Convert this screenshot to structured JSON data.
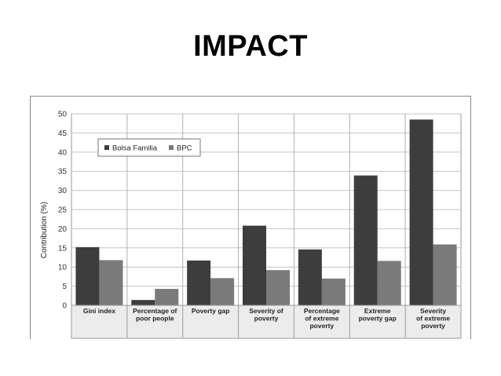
{
  "slide": {
    "title": "IMPACT"
  },
  "chart_data": {
    "type": "bar",
    "title": "",
    "xlabel": "",
    "ylabel": "Contribution (%)",
    "ylim": [
      0,
      50
    ],
    "yticks": [
      0,
      5,
      10,
      15,
      20,
      25,
      30,
      35,
      40,
      45,
      50
    ],
    "grid": true,
    "legend_position": "top-left",
    "categories": [
      [
        "Gini index"
      ],
      [
        "Percentage of",
        "poor people"
      ],
      [
        "Poverty gap"
      ],
      [
        "Severity of",
        "poverty"
      ],
      [
        "Percentage",
        "of extreme",
        "poverty"
      ],
      [
        "Extreme",
        "poverty gap"
      ],
      [
        "Severity",
        "of extreme",
        "poverty"
      ]
    ],
    "series": [
      {
        "name": "Bolsa Familia",
        "color": "#3d3d3d",
        "values": [
          15.2,
          1.4,
          11.7,
          20.8,
          14.6,
          33.9,
          48.5
        ]
      },
      {
        "name": "BPC",
        "color": "#7a7a7a",
        "values": [
          11.8,
          4.3,
          7.1,
          9.2,
          7.0,
          11.6,
          15.9
        ]
      }
    ]
  }
}
